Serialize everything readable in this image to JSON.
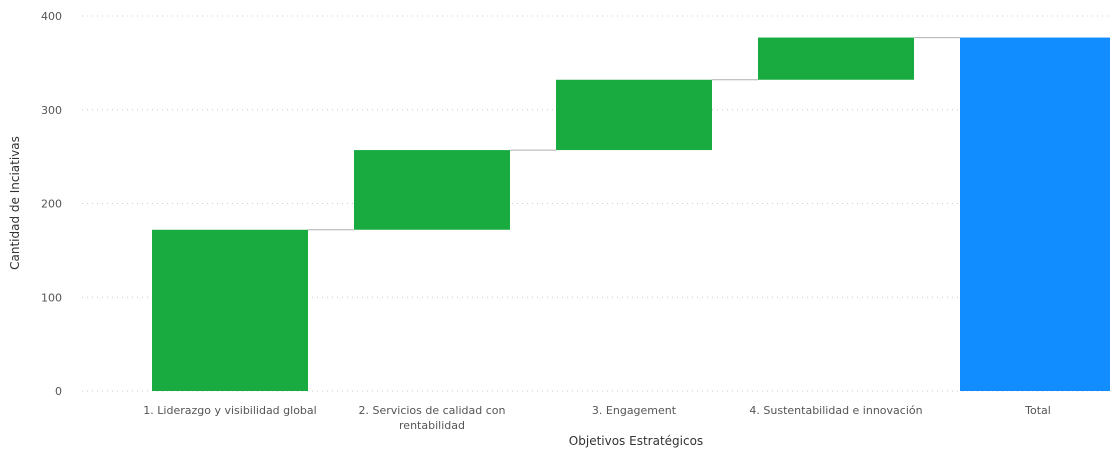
{
  "chart_data": {
    "type": "bar",
    "subtype": "waterfall",
    "xlabel": "Objetivos Estratégicos",
    "ylabel": "Cantidad de Inciativas",
    "ylim": [
      0,
      400
    ],
    "yticks": [
      "0",
      "100",
      "200",
      "300",
      "400"
    ],
    "grid": true,
    "categories": [
      [
        "1. Liderazgo y visibilidad global"
      ],
      [
        "2. Servicios de calidad con",
        "rentabilidad"
      ],
      [
        "3. Engagement"
      ],
      [
        "4. Sustentabilidad e innovación"
      ],
      [
        "Total"
      ]
    ],
    "values": [
      172,
      85,
      75,
      45,
      377
    ],
    "is_total": [
      false,
      false,
      false,
      false,
      true
    ],
    "colors": {
      "increase": "#1aab40",
      "total": "#118dff"
    }
  }
}
